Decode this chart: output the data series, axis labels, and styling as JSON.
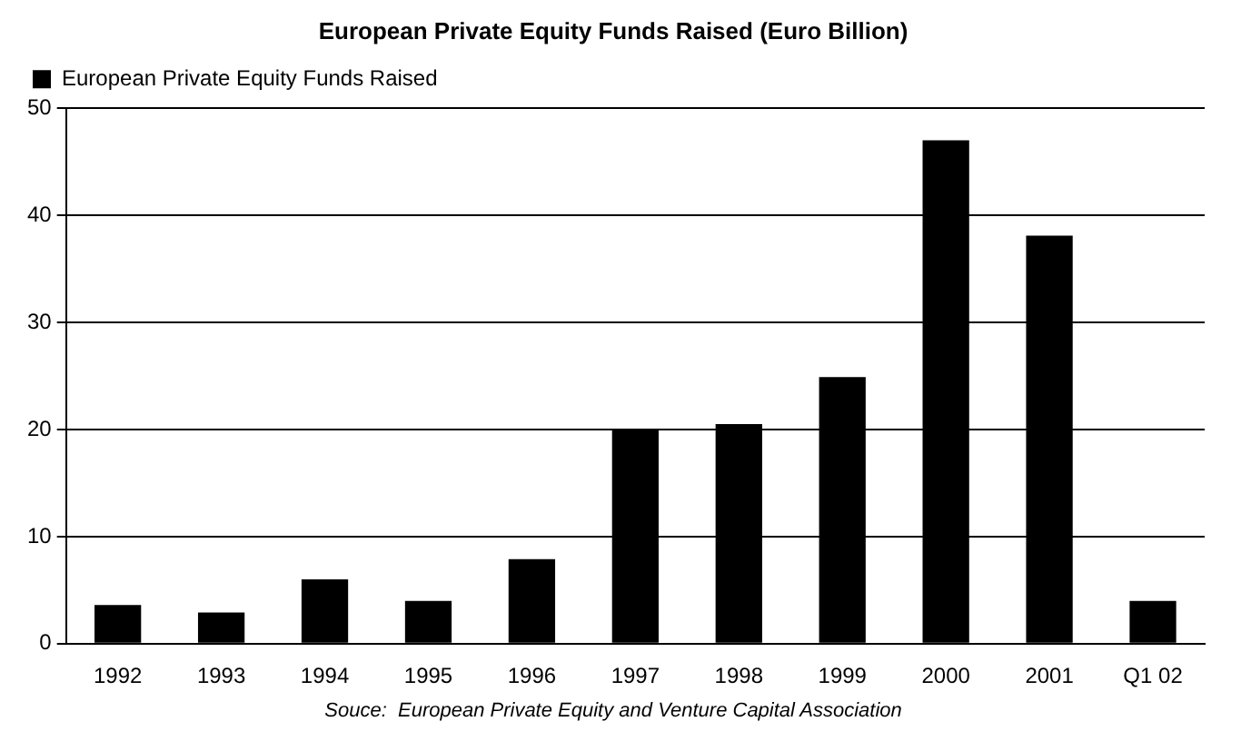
{
  "chart_data": {
    "type": "bar",
    "title": "European Private Equity Funds Raised (Euro Billion)",
    "categories": [
      "1992",
      "1993",
      "1994",
      "1995",
      "1996",
      "1997",
      "1998",
      "1999",
      "2000",
      "2001",
      "Q1 02"
    ],
    "series": [
      {
        "name": "European Private Equity Funds Raised",
        "color": "#000000",
        "values": [
          3.6,
          2.9,
          6.0,
          4.0,
          7.9,
          20.0,
          20.5,
          24.9,
          47.0,
          38.1,
          4.0
        ]
      }
    ],
    "ylim": [
      0,
      50
    ],
    "yticks": [
      0,
      10,
      20,
      30,
      40,
      50
    ],
    "grid": "y",
    "legend": "top left",
    "annotations": [
      "Souce:  European Private Equity and Venture Capital Association"
    ]
  }
}
